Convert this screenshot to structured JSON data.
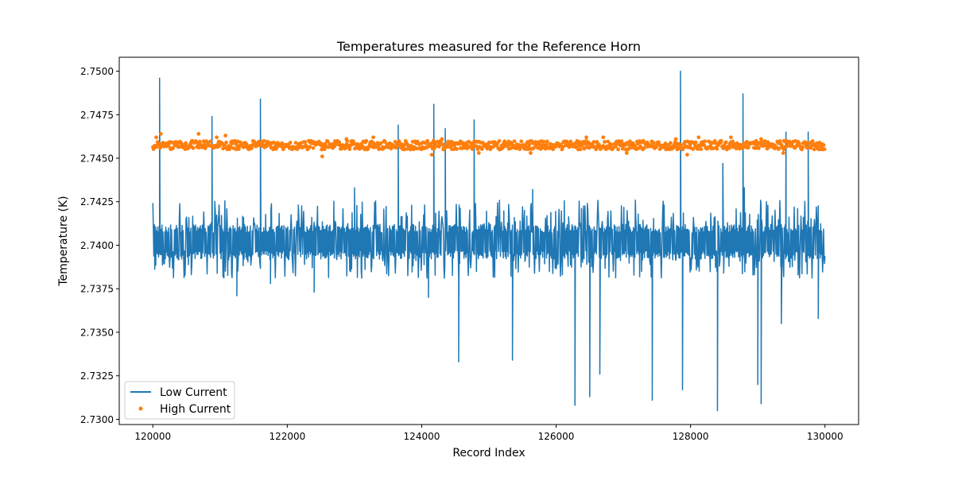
{
  "chart_data": {
    "type": "line",
    "title": "Temperatures measured for the Reference Horn",
    "xlabel": "Record Index",
    "ylabel": "Temperature (K)",
    "xlim": [
      119500,
      130500
    ],
    "ylim": [
      2.7297,
      2.7508
    ],
    "xticks": [
      120000,
      122000,
      124000,
      126000,
      128000,
      130000
    ],
    "xtick_labels": [
      "120000",
      "122000",
      "124000",
      "126000",
      "128000",
      "130000"
    ],
    "yticks": [
      2.73,
      2.7325,
      2.735,
      2.7375,
      2.74,
      2.7425,
      2.745,
      2.7475,
      2.75
    ],
    "ytick_labels": [
      "2.7300",
      "2.7325",
      "2.7350",
      "2.7375",
      "2.7400",
      "2.7425",
      "2.7450",
      "2.7475",
      "2.7500"
    ],
    "legend_position": "lower-left",
    "series": [
      {
        "name": "Low Current",
        "style": "line",
        "color": "#1f77b4",
        "x_range": [
          120000,
          130000
        ],
        "band": [
          2.7392,
          2.7412
        ],
        "frequent_spike_range": [
          2.7381,
          2.7426
        ],
        "spikes": [
          {
            "x": 120100,
            "y": 2.7496
          },
          {
            "x": 120880,
            "y": 2.7474
          },
          {
            "x": 121600,
            "y": 2.7484
          },
          {
            "x": 121250,
            "y": 2.7371
          },
          {
            "x": 121750,
            "y": 2.7378
          },
          {
            "x": 122400,
            "y": 2.7373
          },
          {
            "x": 123000,
            "y": 2.7433
          },
          {
            "x": 123650,
            "y": 2.7469
          },
          {
            "x": 124100,
            "y": 2.737
          },
          {
            "x": 124180,
            "y": 2.7481
          },
          {
            "x": 124350,
            "y": 2.7467
          },
          {
            "x": 124550,
            "y": 2.7333
          },
          {
            "x": 124780,
            "y": 2.7472
          },
          {
            "x": 125350,
            "y": 2.7334
          },
          {
            "x": 125650,
            "y": 2.7432
          },
          {
            "x": 126280,
            "y": 2.7308
          },
          {
            "x": 126500,
            "y": 2.7313
          },
          {
            "x": 126650,
            "y": 2.7326
          },
          {
            "x": 127430,
            "y": 2.7311
          },
          {
            "x": 127850,
            "y": 2.75
          },
          {
            "x": 127880,
            "y": 2.7317
          },
          {
            "x": 128400,
            "y": 2.7305
          },
          {
            "x": 128480,
            "y": 2.7447
          },
          {
            "x": 128780,
            "y": 2.7487
          },
          {
            "x": 128800,
            "y": 2.7433
          },
          {
            "x": 129000,
            "y": 2.732
          },
          {
            "x": 129050,
            "y": 2.7309
          },
          {
            "x": 129350,
            "y": 2.7355
          },
          {
            "x": 129420,
            "y": 2.7465
          },
          {
            "x": 129750,
            "y": 2.7465
          },
          {
            "x": 129900,
            "y": 2.7358
          }
        ]
      },
      {
        "name": "High Current",
        "style": "scatter",
        "color": "#ff7f0e",
        "x_range": [
          120000,
          130000
        ],
        "center": 2.74575,
        "band": [
          2.7455,
          2.746
        ],
        "outliers": [
          {
            "x": 120050,
            "y": 2.7462
          },
          {
            "x": 120120,
            "y": 2.7464
          },
          {
            "x": 120680,
            "y": 2.7464
          },
          {
            "x": 120950,
            "y": 2.7462
          },
          {
            "x": 121080,
            "y": 2.7463
          },
          {
            "x": 122520,
            "y": 2.7451
          },
          {
            "x": 122880,
            "y": 2.7461
          },
          {
            "x": 123280,
            "y": 2.7462
          },
          {
            "x": 124150,
            "y": 2.7452
          },
          {
            "x": 124300,
            "y": 2.7461
          },
          {
            "x": 124850,
            "y": 2.7453
          },
          {
            "x": 125620,
            "y": 2.7453
          },
          {
            "x": 126450,
            "y": 2.7462
          },
          {
            "x": 126700,
            "y": 2.7462
          },
          {
            "x": 127050,
            "y": 2.7453
          },
          {
            "x": 127780,
            "y": 2.7461
          },
          {
            "x": 127950,
            "y": 2.7452
          },
          {
            "x": 128120,
            "y": 2.7462
          },
          {
            "x": 128600,
            "y": 2.7462
          },
          {
            "x": 129050,
            "y": 2.7461
          },
          {
            "x": 129380,
            "y": 2.7453
          }
        ]
      }
    ]
  }
}
